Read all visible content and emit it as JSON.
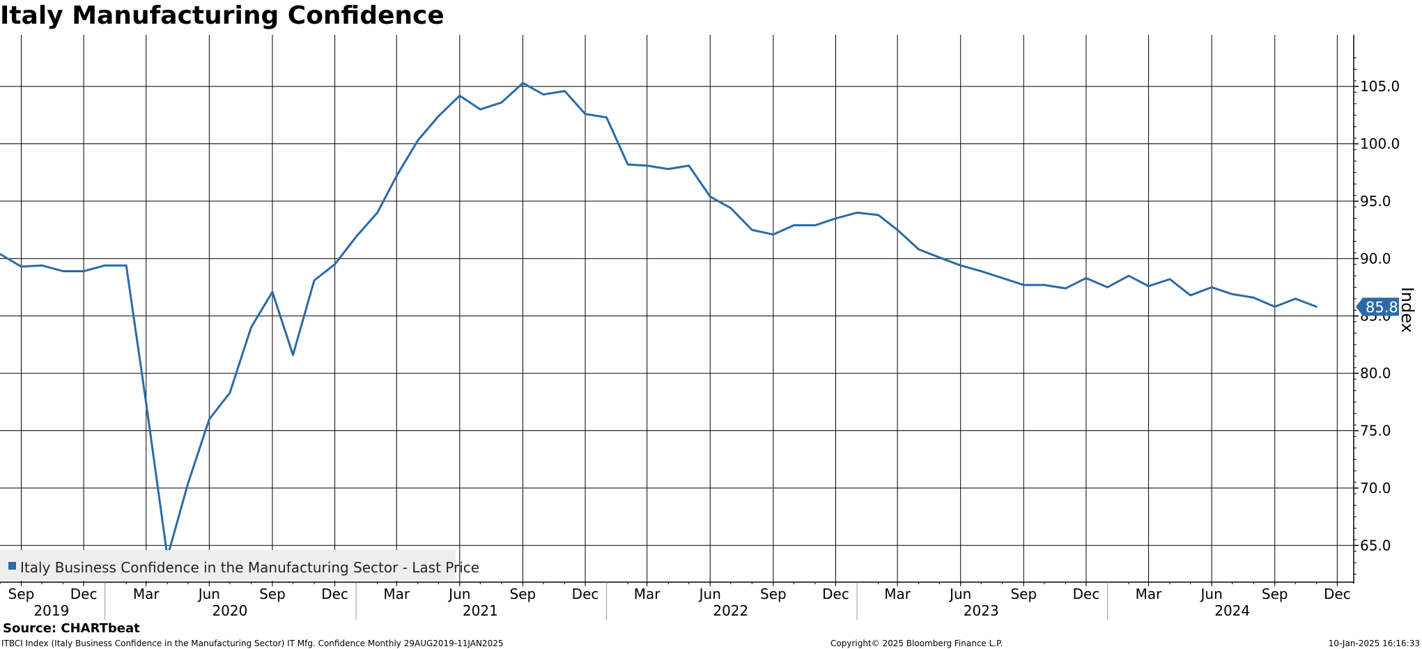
{
  "chart_data": {
    "type": "line",
    "title": "Italy Manufacturing Confidence",
    "ylabel": "Index",
    "ylim": [
      61.8,
      109.5
    ],
    "yticks": [
      65.0,
      70.0,
      75.0,
      80.0,
      85.0,
      90.0,
      95.0,
      100.0,
      105.0
    ],
    "ytick_labels": [
      "65.0",
      "70.0",
      "75.0",
      "80.0",
      "85.0",
      "90.0",
      "95.0",
      "100.0",
      "105.0"
    ],
    "xlim": [
      "2019-08-01",
      "2024-12-25"
    ],
    "month_ticks": [
      {
        "date": "2019-09-01",
        "label": "Sep"
      },
      {
        "date": "2019-12-01",
        "label": "Dec"
      },
      {
        "date": "2020-03-01",
        "label": "Mar"
      },
      {
        "date": "2020-06-01",
        "label": "Jun"
      },
      {
        "date": "2020-09-01",
        "label": "Sep"
      },
      {
        "date": "2020-12-01",
        "label": "Dec"
      },
      {
        "date": "2021-03-01",
        "label": "Mar"
      },
      {
        "date": "2021-06-01",
        "label": "Jun"
      },
      {
        "date": "2021-09-01",
        "label": "Sep"
      },
      {
        "date": "2021-12-01",
        "label": "Dec"
      },
      {
        "date": "2022-03-01",
        "label": "Mar"
      },
      {
        "date": "2022-06-01",
        "label": "Jun"
      },
      {
        "date": "2022-09-01",
        "label": "Sep"
      },
      {
        "date": "2022-12-01",
        "label": "Dec"
      },
      {
        "date": "2023-03-01",
        "label": "Mar"
      },
      {
        "date": "2023-06-01",
        "label": "Jun"
      },
      {
        "date": "2023-09-01",
        "label": "Sep"
      },
      {
        "date": "2023-12-01",
        "label": "Dec"
      },
      {
        "date": "2024-03-01",
        "label": "Mar"
      },
      {
        "date": "2024-06-01",
        "label": "Jun"
      },
      {
        "date": "2024-09-01",
        "label": "Sep"
      },
      {
        "date": "2024-12-01",
        "label": "Dec"
      }
    ],
    "year_labels": [
      {
        "date": "2019-10-15",
        "label": "2019"
      },
      {
        "date": "2020-07-01",
        "label": "2020"
      },
      {
        "date": "2021-07-01",
        "label": "2021"
      },
      {
        "date": "2022-07-01",
        "label": "2022"
      },
      {
        "date": "2023-07-01",
        "label": "2023"
      },
      {
        "date": "2024-07-01",
        "label": "2024"
      }
    ],
    "year_separators": [
      "2020-01-01",
      "2021-01-01",
      "2022-01-01",
      "2023-01-01",
      "2024-01-01"
    ],
    "grid": true,
    "legend_position": "bottom-left",
    "series": [
      {
        "name": "Italy Business Confidence in the Manufacturing Sector - Last Price",
        "color": "#2b6aa8",
        "points": [
          [
            "2019-08-01",
            90.4
          ],
          [
            "2019-09-01",
            89.3
          ],
          [
            "2019-10-01",
            89.4
          ],
          [
            "2019-11-01",
            88.9
          ],
          [
            "2019-12-01",
            88.9
          ],
          [
            "2020-01-01",
            89.4
          ],
          [
            "2020-02-01",
            89.4
          ],
          [
            "2020-03-01",
            77.4
          ],
          [
            "2020-04-01",
            64.0
          ],
          [
            "2020-05-01",
            70.4
          ],
          [
            "2020-06-01",
            76.0
          ],
          [
            "2020-07-01",
            78.3
          ],
          [
            "2020-08-01",
            84.0
          ],
          [
            "2020-09-01",
            87.1
          ],
          [
            "2020-10-01",
            81.6
          ],
          [
            "2020-11-01",
            88.1
          ],
          [
            "2020-12-01",
            89.5
          ],
          [
            "2021-01-01",
            91.9
          ],
          [
            "2021-02-01",
            94.0
          ],
          [
            "2021-03-01",
            97.2
          ],
          [
            "2021-04-01",
            100.3
          ],
          [
            "2021-05-01",
            102.4
          ],
          [
            "2021-06-01",
            104.2
          ],
          [
            "2021-07-01",
            103.0
          ],
          [
            "2021-08-01",
            103.6
          ],
          [
            "2021-09-01",
            105.3
          ],
          [
            "2021-10-01",
            104.3
          ],
          [
            "2021-11-01",
            104.6
          ],
          [
            "2021-12-01",
            102.6
          ],
          [
            "2022-01-01",
            102.3
          ],
          [
            "2022-02-01",
            98.2
          ],
          [
            "2022-03-01",
            98.1
          ],
          [
            "2022-04-01",
            97.8
          ],
          [
            "2022-05-01",
            98.1
          ],
          [
            "2022-06-01",
            95.4
          ],
          [
            "2022-07-01",
            94.4
          ],
          [
            "2022-08-01",
            92.5
          ],
          [
            "2022-09-01",
            92.1
          ],
          [
            "2022-10-01",
            92.9
          ],
          [
            "2022-11-01",
            92.9
          ],
          [
            "2022-12-01",
            93.5
          ],
          [
            "2023-01-01",
            94.0
          ],
          [
            "2023-02-01",
            93.8
          ],
          [
            "2023-03-01",
            92.5
          ],
          [
            "2023-04-01",
            90.8
          ],
          [
            "2023-05-01",
            90.1
          ],
          [
            "2023-06-01",
            89.4
          ],
          [
            "2023-07-01",
            88.9
          ],
          [
            "2023-08-01",
            88.3
          ],
          [
            "2023-09-01",
            87.7
          ],
          [
            "2023-10-01",
            87.7
          ],
          [
            "2023-11-01",
            87.4
          ],
          [
            "2023-12-01",
            88.3
          ],
          [
            "2024-01-01",
            87.5
          ],
          [
            "2024-02-01",
            88.5
          ],
          [
            "2024-03-01",
            87.6
          ],
          [
            "2024-04-01",
            88.2
          ],
          [
            "2024-05-01",
            86.8
          ],
          [
            "2024-06-01",
            87.5
          ],
          [
            "2024-07-01",
            86.9
          ],
          [
            "2024-08-01",
            86.6
          ],
          [
            "2024-09-01",
            85.8
          ],
          [
            "2024-10-01",
            86.5
          ],
          [
            "2024-11-01",
            85.8
          ]
        ]
      }
    ],
    "last_value_label": "85.8"
  },
  "source_text": "Source: CHARTbeat",
  "footer": {
    "left": "ITBCI Index (Italy Business Confidence in the Manufacturing Sector) IT Mfg. Confidence  Monthly 29AUG2019-11JAN2025",
    "center": "Copyright© 2025 Bloomberg Finance L.P.",
    "right": "10-Jan-2025 16:16:33"
  }
}
